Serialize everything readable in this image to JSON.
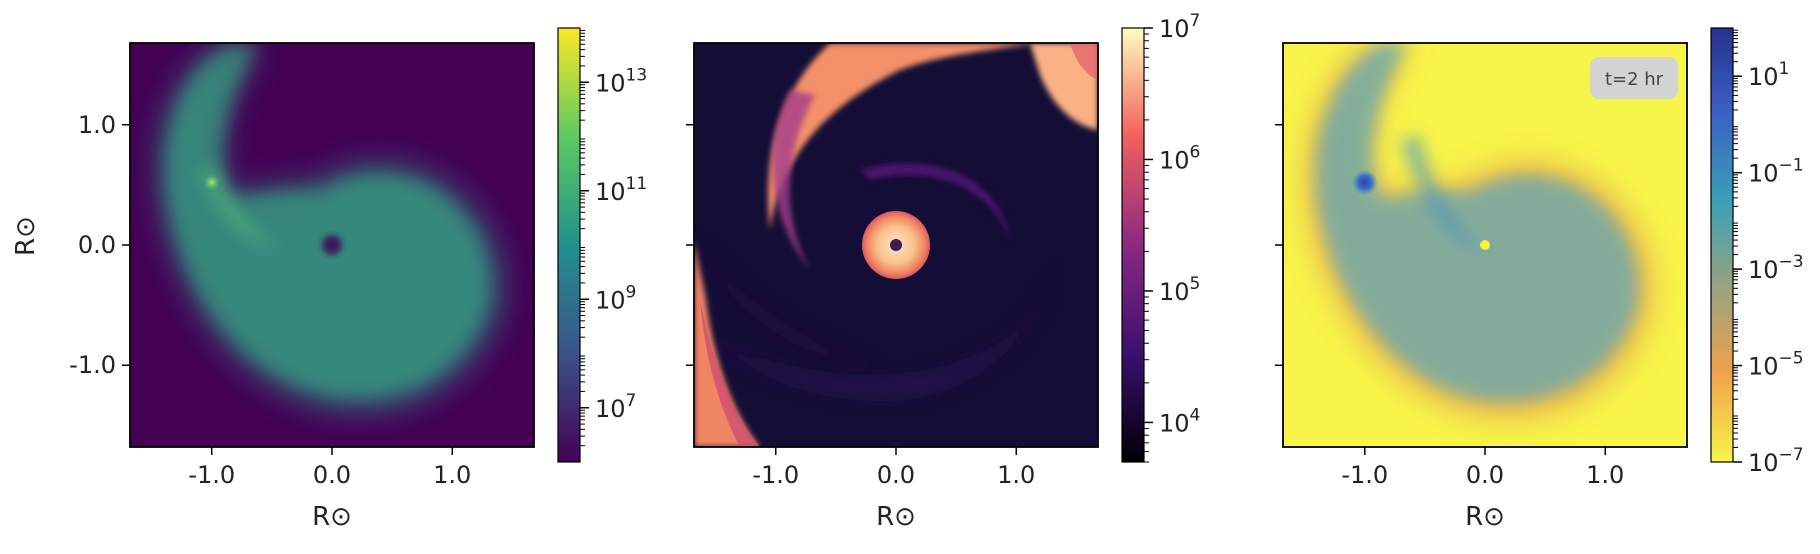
{
  "chart_data": [
    {
      "type": "heatmap",
      "panel": "left",
      "xlabel": "R⊙",
      "ylabel": "R⊙",
      "xlim": [
        -1.68,
        1.68
      ],
      "ylim": [
        -1.68,
        1.68
      ],
      "xticks": [
        -1.0,
        0.0,
        1.0
      ],
      "yticks": [
        1.0,
        0.0,
        -1.0
      ],
      "xtick_labels": [
        "-1.0",
        "0.0",
        "1.0"
      ],
      "ytick_labels": [
        "1.0",
        "0.0",
        "-1.0"
      ],
      "colormap": "viridis",
      "colorbar": {
        "scale": "log",
        "range": [
          1000000,
          100000000000000
        ],
        "ticks": [
          7,
          9,
          11,
          13
        ],
        "base": "10"
      },
      "features": {
        "primary_star": [
          0.0,
          0.0
        ],
        "companion": [
          -1.0,
          0.52
        ]
      },
      "background_color": "#440154"
    },
    {
      "type": "heatmap",
      "panel": "middle",
      "xlabel": "R⊙",
      "xlim": [
        -1.68,
        1.68
      ],
      "ylim": [
        -1.68,
        1.68
      ],
      "xticks": [
        -1.0,
        0.0,
        1.0
      ],
      "xtick_labels": [
        "-1.0",
        "0.0",
        "1.0"
      ],
      "colormap": "magma",
      "colorbar": {
        "scale": "log",
        "range": [
          5000,
          10000000
        ],
        "ticks": [
          4,
          5,
          6,
          7
        ],
        "base": "10"
      },
      "features": {
        "primary_star": [
          0.0,
          0.0
        ]
      },
      "background_color": "#140e36"
    },
    {
      "type": "heatmap",
      "panel": "right",
      "xlabel": "R⊙",
      "xlim": [
        -1.68,
        1.68
      ],
      "ylim": [
        -1.68,
        1.68
      ],
      "xticks": [
        -1.0,
        0.0,
        1.0
      ],
      "xtick_labels": [
        "-1.0",
        "0.0",
        "1.0"
      ],
      "colormap": "plasma_r-like (yellow to blue)",
      "colorbar": {
        "scale": "log",
        "range": [
          1e-07,
          100
        ],
        "ticks": [
          1,
          -1,
          -3,
          -5,
          -7
        ],
        "base": "10"
      },
      "features": {
        "primary_star": [
          0.0,
          0.0
        ],
        "companion": [
          -1.0,
          0.52
        ]
      },
      "annotation": "t=2 hr",
      "background_color": "#f7f44a"
    }
  ]
}
